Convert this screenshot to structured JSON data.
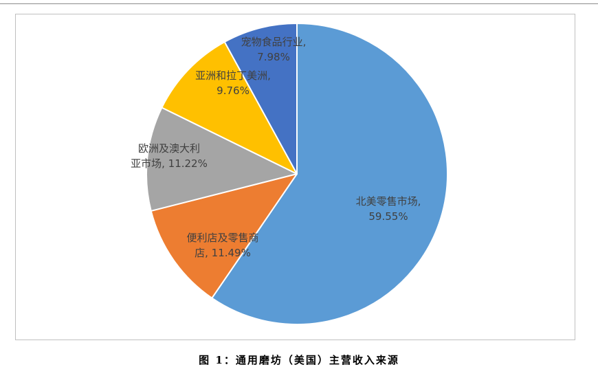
{
  "caption": "图 1：通用磨坊（美国）主营收入来源",
  "chart_data": {
    "type": "pie",
    "title": "",
    "start_angle_deg": 0,
    "direction": "clockwise",
    "slices": [
      {
        "label": "北美零售市场",
        "value": 59.55,
        "value_text": "59.55%",
        "color": "#5b9bd5"
      },
      {
        "label": "便利店及零售商店",
        "value": 11.49,
        "value_text": "11.49%",
        "color": "#ed7d31"
      },
      {
        "label": "欧洲及澳大利亚市场",
        "value": 11.22,
        "value_text": "11.22%",
        "color": "#a5a5a5"
      },
      {
        "label": "亚洲和拉丁美洲",
        "value": 9.76,
        "value_text": "9.76%",
        "color": "#ffc000"
      },
      {
        "label": "宠物食品行业",
        "value": 7.98,
        "value_text": "7.98%",
        "color": "#4472c4"
      }
    ]
  }
}
